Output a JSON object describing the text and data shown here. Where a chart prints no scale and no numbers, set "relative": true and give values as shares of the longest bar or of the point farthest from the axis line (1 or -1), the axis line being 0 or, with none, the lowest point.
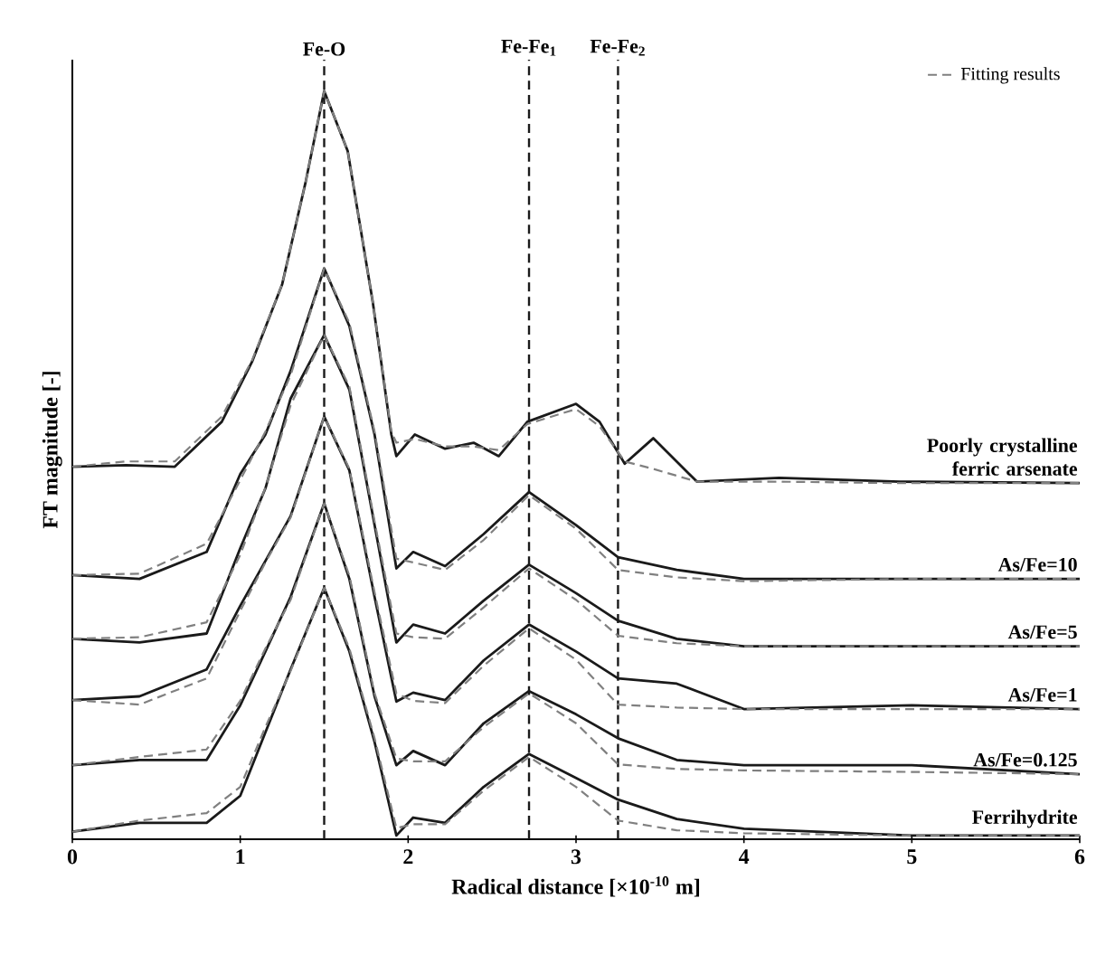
{
  "chart_data": {
    "type": "line",
    "relative": true,
    "xlabel": "Radical distance [×10$^{-10}$ m]",
    "ylabel": "FT magnitude [-]",
    "xlim": [
      0,
      6
    ],
    "xticks": [
      0,
      1,
      2,
      3,
      4,
      5,
      6
    ],
    "legend": "top right",
    "grid": false,
    "ref_lines": [
      {
        "axis": "x",
        "value": 1.5,
        "label": "Fe-O",
        "color": "#1a1a1a",
        "line_style": "dashed"
      },
      {
        "axis": "x",
        "value": 2.72,
        "label": "Fe-Fe$_{1}$",
        "color": "#1a1a1a",
        "line_style": "dashed"
      },
      {
        "axis": "x",
        "value": 3.25,
        "label": "Fe-Fe$_{2}$",
        "color": "#1a1a1a",
        "line_style": "dashed"
      }
    ],
    "series": [
      {
        "name": "Poorly crystalline ferric arsenate",
        "color": "#1a1a1a",
        "line_style": "solid",
        "x": [
          0,
          0.32,
          0.61,
          0.89,
          1.07,
          1.25,
          1.39,
          1.5,
          1.64,
          1.79,
          1.9,
          1.93,
          2.04,
          2.22,
          2.39,
          2.54,
          2.71,
          3.0,
          3.14,
          3.29,
          3.46,
          3.72,
          4.21,
          4.93,
          6
        ],
        "values": [
          0.498,
          0.5,
          0.498,
          0.558,
          0.638,
          0.742,
          0.879,
          1.0,
          0.92,
          0.717,
          0.541,
          0.512,
          0.541,
          0.522,
          0.53,
          0.512,
          0.558,
          0.582,
          0.558,
          0.502,
          0.536,
          0.478,
          0.483,
          0.478,
          0.476
        ]
      },
      {
        "name": "As/Fe=10",
        "color": "#1a1a1a",
        "line_style": "solid",
        "x": [
          0,
          0.4,
          0.8,
          1.0,
          1.15,
          1.3,
          1.5,
          1.65,
          1.8,
          1.93,
          2.03,
          2.22,
          2.45,
          2.72,
          3.0,
          3.25,
          3.6,
          4.0,
          5.0,
          6.0
        ],
        "values": [
          0.353,
          0.348,
          0.384,
          0.488,
          0.541,
          0.626,
          0.763,
          0.686,
          0.541,
          0.362,
          0.384,
          0.365,
          0.408,
          0.464,
          0.42,
          0.377,
          0.36,
          0.348,
          0.348,
          0.348
        ]
      },
      {
        "name": "As/Fe=5",
        "color": "#1a1a1a",
        "line_style": "solid",
        "x": [
          0,
          0.4,
          0.8,
          1.0,
          1.15,
          1.3,
          1.5,
          1.65,
          1.8,
          1.93,
          2.03,
          2.22,
          2.45,
          2.72,
          3.0,
          3.25,
          3.6,
          4.0,
          5.0,
          6.0
        ],
        "values": [
          0.268,
          0.263,
          0.275,
          0.389,
          0.469,
          0.589,
          0.674,
          0.601,
          0.42,
          0.263,
          0.287,
          0.275,
          0.319,
          0.367,
          0.329,
          0.292,
          0.268,
          0.258,
          0.258,
          0.258
        ]
      },
      {
        "name": "As/Fe=1",
        "color": "#1a1a1a",
        "line_style": "solid",
        "x": [
          0,
          0.4,
          0.8,
          1.0,
          1.15,
          1.3,
          1.5,
          1.65,
          1.8,
          1.93,
          2.03,
          2.22,
          2.45,
          2.72,
          3.0,
          3.25,
          3.6,
          4.0,
          5.0,
          6.0
        ],
        "values": [
          0.186,
          0.191,
          0.227,
          0.312,
          0.372,
          0.432,
          0.565,
          0.493,
          0.324,
          0.184,
          0.196,
          0.186,
          0.239,
          0.287,
          0.251,
          0.215,
          0.208,
          0.174,
          0.179,
          0.174
        ]
      },
      {
        "name": "As/Fe=0.125",
        "color": "#1a1a1a",
        "line_style": "solid",
        "x": [
          0,
          0.4,
          0.8,
          1.0,
          1.15,
          1.3,
          1.5,
          1.65,
          1.8,
          1.93,
          2.03,
          2.22,
          2.45,
          2.72,
          3.0,
          3.25,
          3.6,
          4.0,
          5.0,
          6.0
        ],
        "values": [
          0.099,
          0.106,
          0.106,
          0.179,
          0.251,
          0.324,
          0.449,
          0.348,
          0.191,
          0.099,
          0.118,
          0.099,
          0.155,
          0.198,
          0.167,
          0.135,
          0.106,
          0.099,
          0.099,
          0.087
        ]
      },
      {
        "name": "Ferrihydrite",
        "color": "#1a1a1a",
        "line_style": "solid",
        "x": [
          0,
          0.4,
          0.8,
          1.0,
          1.15,
          1.3,
          1.5,
          1.65,
          1.8,
          1.93,
          2.03,
          2.22,
          2.45,
          2.72,
          3.0,
          3.25,
          3.6,
          4.0,
          5.0,
          6.0
        ],
        "values": [
          0.01,
          0.022,
          0.022,
          0.058,
          0.143,
          0.227,
          0.336,
          0.251,
          0.13,
          0.005,
          0.029,
          0.022,
          0.07,
          0.114,
          0.082,
          0.053,
          0.027,
          0.014,
          0.005,
          0.005
        ]
      },
      {
        "name": "Fitting results",
        "color": "#808080",
        "line_style": "dashed",
        "x": [
          0,
          0.32,
          0.61,
          0.89,
          1.07,
          1.25,
          1.39,
          1.5,
          1.64,
          1.79,
          1.9,
          1.93,
          2.04,
          2.22,
          2.39,
          2.54,
          2.71,
          3.0,
          3.14,
          3.29,
          3.46,
          3.72,
          4.21,
          4.93,
          6
        ],
        "values": [
          0.498,
          0.505,
          0.505,
          0.565,
          0.64,
          0.742,
          0.879,
          1.0,
          0.92,
          0.717,
          0.545,
          0.53,
          0.535,
          0.525,
          0.525,
          0.52,
          0.555,
          0.575,
          0.552,
          0.505,
          0.495,
          0.478,
          0.478,
          0.476,
          0.476
        ]
      },
      {
        "color": "#808080",
        "line_style": "dashed",
        "x": [
          0,
          0.4,
          0.8,
          1.0,
          1.15,
          1.3,
          1.5,
          1.65,
          1.8,
          1.93,
          2.03,
          2.22,
          2.45,
          2.72,
          3.0,
          3.25,
          3.6,
          4.0,
          5.0,
          6.0
        ],
        "values": [
          0.353,
          0.355,
          0.395,
          0.48,
          0.545,
          0.62,
          0.763,
          0.69,
          0.545,
          0.375,
          0.37,
          0.36,
          0.4,
          0.46,
          0.415,
          0.36,
          0.35,
          0.345,
          0.348,
          0.348
        ]
      },
      {
        "color": "#808080",
        "line_style": "dashed",
        "x": [
          0,
          0.4,
          0.8,
          1.0,
          1.15,
          1.3,
          1.5,
          1.65,
          1.8,
          1.93,
          2.03,
          2.22,
          2.45,
          2.72,
          3.0,
          3.25,
          3.6,
          4.0,
          5.0,
          6.0
        ],
        "values": [
          0.268,
          0.27,
          0.29,
          0.38,
          0.47,
          0.58,
          0.674,
          0.605,
          0.425,
          0.275,
          0.27,
          0.268,
          0.31,
          0.362,
          0.32,
          0.272,
          0.262,
          0.258,
          0.258,
          0.258
        ]
      },
      {
        "color": "#808080",
        "line_style": "dashed",
        "x": [
          0,
          0.4,
          0.8,
          1.0,
          1.15,
          1.3,
          1.5,
          1.65,
          1.8,
          1.93,
          2.03,
          2.22,
          2.45,
          2.72,
          3.0,
          3.25,
          3.6,
          4.0,
          5.0,
          6.0
        ],
        "values": [
          0.186,
          0.18,
          0.215,
          0.305,
          0.37,
          0.43,
          0.565,
          0.495,
          0.33,
          0.195,
          0.185,
          0.182,
          0.232,
          0.282,
          0.24,
          0.18,
          0.176,
          0.174,
          0.174,
          0.174
        ]
      },
      {
        "color": "#808080",
        "line_style": "dashed",
        "x": [
          0,
          0.4,
          0.8,
          1.0,
          1.15,
          1.3,
          1.5,
          1.65,
          1.8,
          1.93,
          2.03,
          2.22,
          2.45,
          2.72,
          3.0,
          3.25,
          3.6,
          4.0,
          5.0,
          6.0
        ],
        "values": [
          0.099,
          0.11,
          0.12,
          0.185,
          0.255,
          0.32,
          0.449,
          0.352,
          0.195,
          0.108,
          0.104,
          0.104,
          0.15,
          0.195,
          0.155,
          0.1,
          0.094,
          0.092,
          0.09,
          0.087
        ]
      },
      {
        "color": "#808080",
        "line_style": "dashed",
        "x": [
          0,
          0.4,
          0.8,
          1.0,
          1.15,
          1.3,
          1.5,
          1.65,
          1.8,
          1.93,
          2.03,
          2.22,
          2.45,
          2.72,
          3.0,
          3.25,
          3.6,
          4.0,
          5.0,
          6.0
        ],
        "values": [
          0.01,
          0.025,
          0.035,
          0.07,
          0.15,
          0.225,
          0.336,
          0.255,
          0.135,
          0.015,
          0.02,
          0.02,
          0.065,
          0.11,
          0.07,
          0.025,
          0.012,
          0.008,
          0.005,
          0.005
        ]
      }
    ]
  }
}
